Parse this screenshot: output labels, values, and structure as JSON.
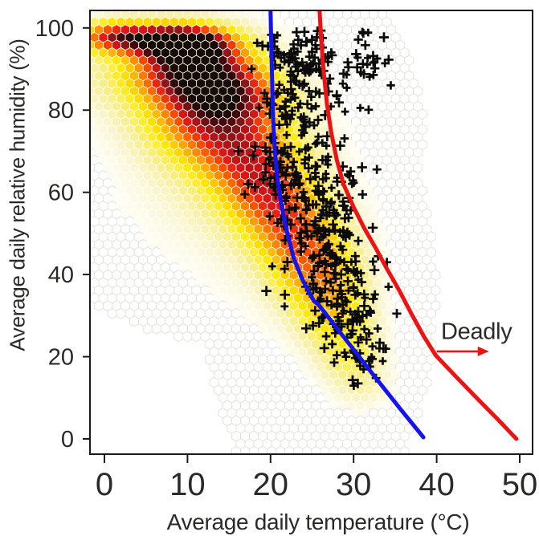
{
  "figure": {
    "background": "#ffffff",
    "frame_color": "#1a1a1a",
    "text_color": "#2b2a29"
  },
  "chart_data": {
    "type": "hexbin",
    "title": "",
    "xlabel": "Average daily temperature (°C)",
    "ylabel": "Average daily relative humidity (%)",
    "xlim": [
      -1.7,
      51.5
    ],
    "ylim": [
      -3.1,
      104.3
    ],
    "xticks": [
      0,
      10,
      20,
      30,
      40,
      50
    ],
    "yticks": [
      0,
      20,
      40,
      60,
      80,
      100
    ],
    "grid": false,
    "legend_position": "none",
    "hexbin": {
      "description": "density of global daily climate conditions; white=low, yellow-orange-red-black=high",
      "hex_radius_px": 6.37,
      "empty_fill": "#ffffff",
      "empty_stroke": "#e3e3dd",
      "presence_threshold": 0.04,
      "presence_blobs": [
        {
          "t": 13,
          "rh": 75,
          "st": 10,
          "srh": 20
        },
        {
          "t": 26,
          "rh": 35,
          "st": 5.5,
          "srh": 22
        }
      ],
      "density_blobs": [
        {
          "t": 10,
          "rh": 95.5,
          "st": 3.4,
          "srh": 2.8,
          "a": 1.0
        },
        {
          "t": 11,
          "rh": 89,
          "st": 4.5,
          "srh": 4.5,
          "a": 0.72
        },
        {
          "t": 6,
          "rh": 97.5,
          "st": 5.0,
          "srh": 2.6,
          "a": 0.62
        },
        {
          "t": 1,
          "rh": 98,
          "st": 2.6,
          "srh": 2.4,
          "a": 0.42
        },
        {
          "t": 8,
          "rh": 90,
          "st": 8.0,
          "srh": 8.0,
          "a": 0.25
        },
        {
          "t": 14.5,
          "rh": 83,
          "st": 4.5,
          "srh": 5.0,
          "a": 0.55
        },
        {
          "t": 13,
          "rh": 76,
          "st": 5.0,
          "srh": 6.0,
          "a": 0.45
        },
        {
          "t": 17,
          "rh": 68,
          "st": 4.0,
          "srh": 6.0,
          "a": 0.45
        },
        {
          "t": 20,
          "rh": 59,
          "st": 3.6,
          "srh": 6.0,
          "a": 0.46
        },
        {
          "t": 23,
          "rh": 50,
          "st": 3.4,
          "srh": 6.0,
          "a": 0.4
        },
        {
          "t": 25.5,
          "rh": 41,
          "st": 3.4,
          "srh": 6.0,
          "a": 0.36
        },
        {
          "t": 27.5,
          "rh": 31.5,
          "st": 3.2,
          "srh": 6.0,
          "a": 0.28
        },
        {
          "t": 29.5,
          "rh": 22,
          "st": 3.0,
          "srh": 5.5,
          "a": 0.2
        },
        {
          "t": 31,
          "rh": 13,
          "st": 3.0,
          "srh": 5.0,
          "a": 0.12
        },
        {
          "t": 14,
          "rh": 70,
          "st": 9.0,
          "srh": 18,
          "a": 0.16
        },
        {
          "t": 24,
          "rh": 45,
          "st": 7.0,
          "srh": 16,
          "a": 0.1
        }
      ],
      "color_stops": [
        [
          0.05,
          "#fefdf4"
        ],
        [
          0.095,
          "#fbf7d8"
        ],
        [
          0.145,
          "#f9f2b2"
        ],
        [
          0.205,
          "#f7ee85"
        ],
        [
          0.27,
          "#ffee44"
        ],
        [
          0.35,
          "#ffe800"
        ],
        [
          0.44,
          "#ffc701"
        ],
        [
          0.53,
          "#ff9d00"
        ],
        [
          0.62,
          "#ff6d00"
        ],
        [
          0.71,
          "#f54302"
        ],
        [
          0.8,
          "#e41616"
        ],
        [
          0.88,
          "#b21418"
        ],
        [
          0.95,
          "#7d1517"
        ],
        [
          1.03,
          "#47080c"
        ],
        [
          1.12,
          "#160b05"
        ]
      ]
    },
    "series": [
      {
        "name": "survivability-threshold-blue",
        "color": "#1414ee",
        "width": 5,
        "points": [
          [
            20.0,
            104.3
          ],
          [
            20.1,
            95.1
          ],
          [
            20.2,
            86.3
          ],
          [
            20.3,
            78.5
          ],
          [
            20.5,
            70.7
          ],
          [
            20.8,
            63.8
          ],
          [
            21.3,
            57.0
          ],
          [
            22.0,
            50.2
          ],
          [
            22.8,
            43.9
          ],
          [
            23.9,
            38.5
          ],
          [
            25.2,
            33.6
          ],
          [
            25.8,
            32.6
          ],
          [
            29.2,
            23.8
          ],
          [
            32.6,
            15.0
          ],
          [
            35.5,
            7.6
          ],
          [
            38.4,
            0.4
          ]
        ]
      },
      {
        "name": "deadly-threshold-red",
        "color": "#ee1212",
        "width": 5,
        "points": [
          [
            25.9,
            104.3
          ],
          [
            26.1,
            97.0
          ],
          [
            26.4,
            89.2
          ],
          [
            26.8,
            81.4
          ],
          [
            27.3,
            74.6
          ],
          [
            28.0,
            67.7
          ],
          [
            28.8,
            61.9
          ],
          [
            30.0,
            56.4
          ],
          [
            31.3,
            51.2
          ],
          [
            32.7,
            46.3
          ],
          [
            34.0,
            41.4
          ],
          [
            35.5,
            36.1
          ],
          [
            36.9,
            30.7
          ],
          [
            38.5,
            24.8
          ],
          [
            39.9,
            20.3
          ],
          [
            42.4,
            15.0
          ],
          [
            44.8,
            10.0
          ],
          [
            47.2,
            5.1
          ],
          [
            49.6,
            0.0
          ]
        ]
      }
    ],
    "deadly_events": {
      "marker": "+",
      "color": "#0b0b0b",
      "seed": 11,
      "clusters": [
        {
          "t": 22.6,
          "rh": 93.5,
          "st": 1.8,
          "srh": 3.0,
          "n": 50
        },
        {
          "t": 25.5,
          "rh": 91.0,
          "st": 1.5,
          "srh": 4.0,
          "n": 25
        },
        {
          "t": 31.2,
          "rh": 92.0,
          "st": 1.6,
          "srh": 4.0,
          "n": 28
        },
        {
          "t": 23.2,
          "rh": 81.0,
          "st": 2.0,
          "srh": 3.5,
          "n": 55
        },
        {
          "t": 21.6,
          "rh": 67.0,
          "st": 2.2,
          "srh": 4.0,
          "n": 40
        },
        {
          "t": 24.8,
          "rh": 62.0,
          "st": 2.4,
          "srh": 5.0,
          "n": 60
        },
        {
          "t": 26.2,
          "rh": 50.0,
          "st": 2.4,
          "srh": 5.5,
          "n": 75
        },
        {
          "t": 27.8,
          "rh": 39.0,
          "st": 2.4,
          "srh": 5.0,
          "n": 60
        },
        {
          "t": 29.3,
          "rh": 28.0,
          "st": 2.2,
          "srh": 4.0,
          "n": 45
        },
        {
          "t": 31.3,
          "rh": 19.5,
          "st": 1.8,
          "srh": 3.0,
          "n": 20
        },
        {
          "t": 26.5,
          "rh": 60.0,
          "st": 4.5,
          "srh": 20,
          "n": 45
        },
        {
          "t": 19.0,
          "rh": 63.0,
          "st": 1.2,
          "srh": 3.5,
          "n": 10
        }
      ],
      "extra_points": [
        [
          34.2,
          37.0
        ],
        [
          35.2,
          30.5
        ],
        [
          33.6,
          22.0
        ],
        [
          34.0,
          43.0
        ],
        [
          30.5,
          13.5
        ],
        [
          32.7,
          14.8
        ],
        [
          17.3,
          62.0
        ],
        [
          16.9,
          59.5
        ],
        [
          20.2,
          42.0
        ],
        [
          19.5,
          36.0
        ]
      ]
    },
    "annotation": {
      "text": "Deadly",
      "text_color": "#2b2a29",
      "arrow": {
        "from_t": 40.0,
        "to_t": 46.3,
        "rh": 21.3,
        "color": "#ee1212"
      }
    }
  }
}
